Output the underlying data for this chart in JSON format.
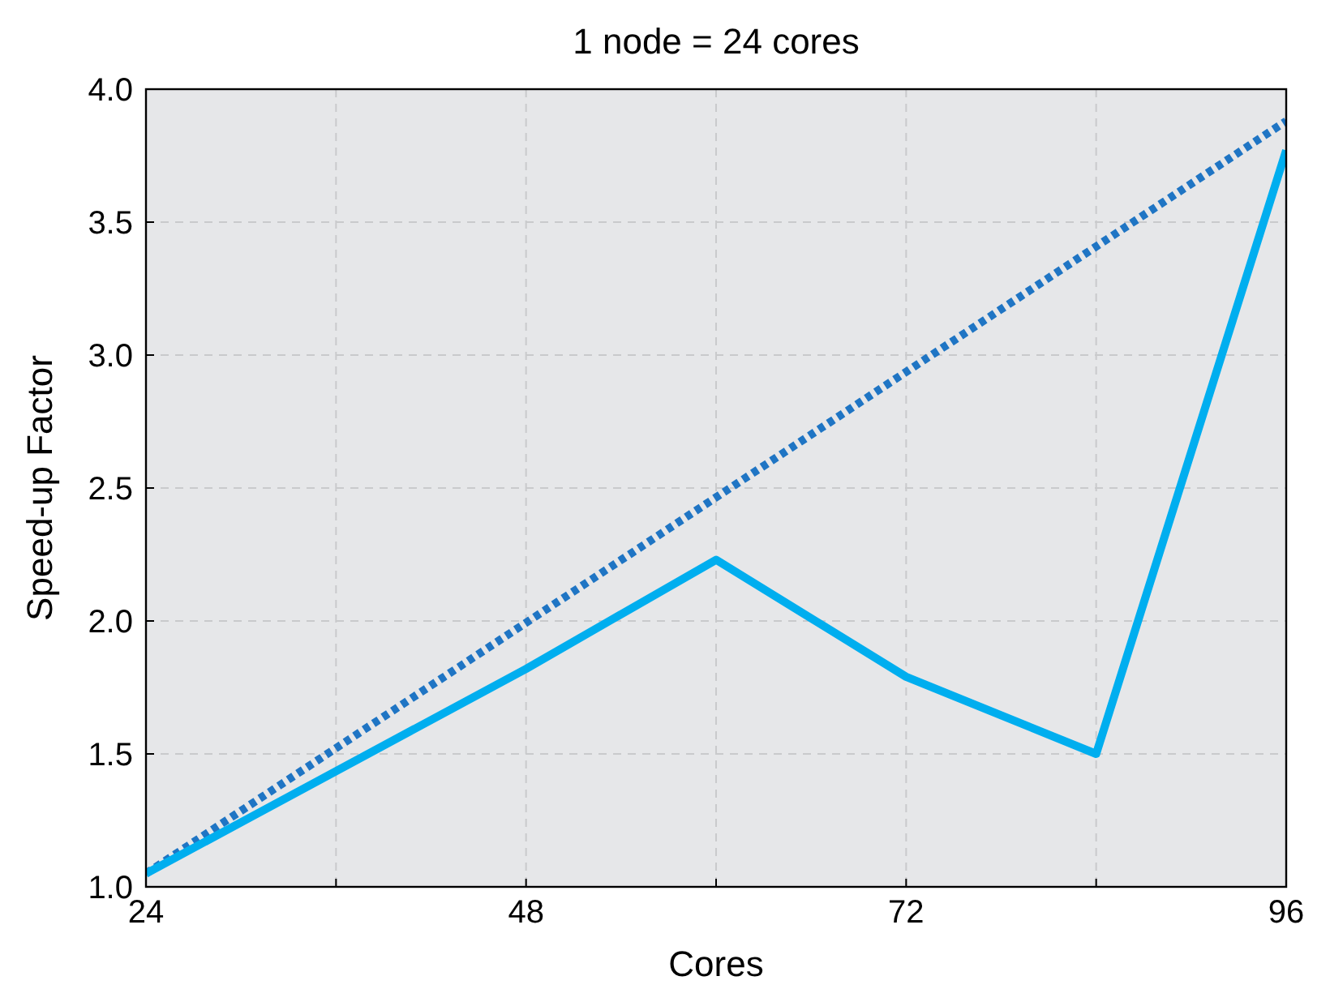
{
  "chart_data": {
    "type": "line",
    "title": "1 node = 24 cores",
    "xlabel": "Cores",
    "ylabel": "Speed-up Factor",
    "xlim": [
      24,
      96
    ],
    "xticks": [
      24,
      {
        "value": 36,
        "label": null
      },
      48,
      {
        "value": 60,
        "label": null
      },
      72,
      {
        "value": 84,
        "label": null
      },
      96
    ],
    "ylim": [
      1.0,
      4.0
    ],
    "yticks": [
      {
        "value": 1.0,
        "label": "1.0"
      },
      1.5,
      {
        "value": 2.0,
        "label": "2.0"
      },
      2.5,
      {
        "value": 3.0,
        "label": "3.0"
      },
      3.5,
      {
        "value": 4.0,
        "label": "4.0"
      }
    ],
    "grid": true,
    "series": [
      {
        "color": "#1f75c4",
        "line_style": "dotted",
        "x": [
          24,
          96
        ],
        "values": [
          1.05,
          3.88
        ]
      },
      {
        "color": "#00aeef",
        "line_style": "solid",
        "x": [
          24,
          48,
          60,
          72,
          84,
          96
        ],
        "values": [
          1.05,
          1.82,
          2.23,
          1.79,
          1.5,
          3.77
        ]
      }
    ]
  }
}
